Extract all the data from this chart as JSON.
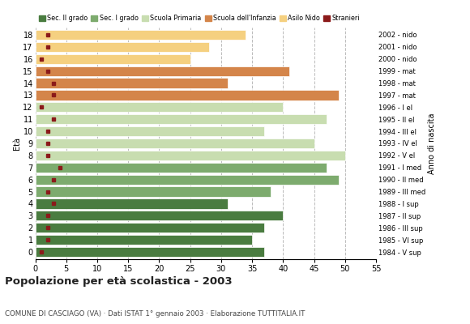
{
  "ages": [
    18,
    17,
    16,
    15,
    14,
    13,
    12,
    11,
    10,
    9,
    8,
    7,
    6,
    5,
    4,
    3,
    2,
    1,
    0
  ],
  "anno": [
    "1984 - V sup",
    "1985 - VI sup",
    "1986 - III sup",
    "1987 - II sup",
    "1988 - I sup",
    "1989 - III med",
    "1990 - II med",
    "1991 - I med",
    "1992 - V el",
    "1993 - IV el",
    "1994 - III el",
    "1995 - II el",
    "1996 - I el",
    "1997 - mat",
    "1998 - mat",
    "1999 - mat",
    "2000 - nido",
    "2001 - nido",
    "2002 - nido"
  ],
  "bar_values": [
    37,
    35,
    37,
    40,
    31,
    38,
    49,
    47,
    50,
    45,
    37,
    47,
    40,
    49,
    31,
    41,
    25,
    28,
    34
  ],
  "stranieri": [
    1,
    2,
    2,
    2,
    3,
    2,
    3,
    4,
    2,
    2,
    2,
    3,
    1,
    3,
    3,
    2,
    1,
    2,
    2
  ],
  "bar_colors_by_age": {
    "18": "#4a7c40",
    "17": "#4a7c40",
    "16": "#4a7c40",
    "15": "#4a7c40",
    "14": "#4a7c40",
    "13": "#7dab6e",
    "12": "#7dab6e",
    "11": "#7dab6e",
    "10": "#c8ddb0",
    "9": "#c8ddb0",
    "8": "#c8ddb0",
    "7": "#c8ddb0",
    "6": "#c8ddb0",
    "5": "#d4854a",
    "4": "#d4854a",
    "3": "#d4854a",
    "2": "#f5d080",
    "1": "#f5d080",
    "0": "#f5d080"
  },
  "category_colors": {
    "Sec. II grado": "#4a7c40",
    "Sec. I grado": "#7dab6e",
    "Scuola Primaria": "#c8ddb0",
    "Scuola dell'Infanzia": "#d4854a",
    "Asilo Nido": "#f5d080",
    "Stranieri": "#8b1a1a"
  },
  "stranieri_color": "#8b1a1a",
  "xlim": [
    0,
    55
  ],
  "xticks": [
    0,
    5,
    10,
    15,
    20,
    25,
    30,
    35,
    40,
    45,
    50,
    55
  ],
  "title": "Popolazione per età scolastica - 2003",
  "subtitle": "COMUNE DI CASCIAGO (VA) · Dati ISTAT 1° gennaio 2003 · Elaborazione TUTTITALIA.IT",
  "ylabel": "Età",
  "ylabel2": "Anno di nascita",
  "background_color": "#ffffff",
  "grid_color": "#bbbbbb"
}
